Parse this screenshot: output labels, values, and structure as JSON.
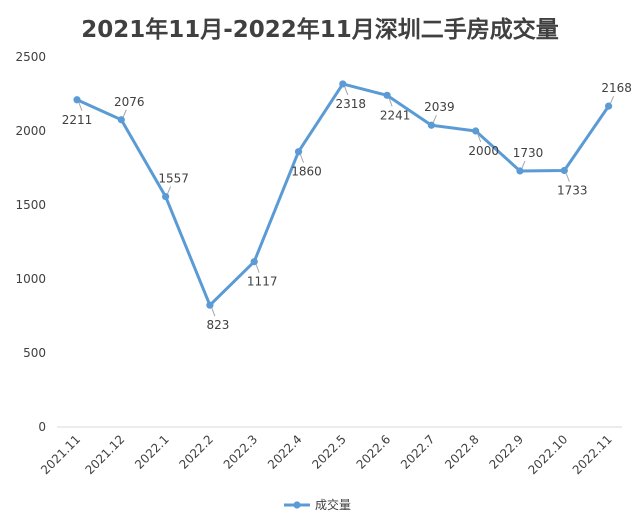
{
  "chart_data": {
    "type": "line",
    "title": "2021年11月-2022年11月深圳二手房成交量",
    "xlabel": "",
    "ylabel": "",
    "categories": [
      "2021.11",
      "2021.12",
      "2022.1",
      "2022.2",
      "2022.3",
      "2022.4",
      "2022.5",
      "2022.6",
      "2022.7",
      "2022.8",
      "2022.9",
      "2022.10",
      "2022.11"
    ],
    "series": [
      {
        "name": "成交量",
        "values": [
          2211,
          2076,
          1557,
          823,
          1117,
          1860,
          2318,
          2241,
          2039,
          2000,
          1730,
          1733,
          2168
        ]
      }
    ],
    "data_labels": [
      "2211",
      "2076",
      "1557",
      "823",
      "1117",
      "1860",
      "2318",
      "2241",
      "2039",
      "2000",
      "1730",
      "1733",
      "2168"
    ],
    "yticks": [
      "0",
      "500",
      "1000",
      "1500",
      "2000",
      "2500"
    ],
    "ylim": [
      0,
      2500
    ],
    "grid": false,
    "legend_position": "bottom",
    "colors": {
      "series": "#5B9BD5",
      "text": "#404040",
      "axis": "#D9D9D9",
      "leader": "#A6A6A6"
    }
  }
}
